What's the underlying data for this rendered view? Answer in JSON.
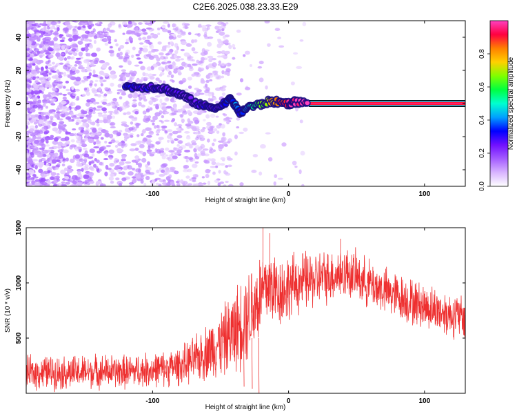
{
  "chart_data": [
    {
      "type": "heatmap",
      "title": "C2E6.2025.038.23.33.E29",
      "xlabel": "Height of straight line (km)",
      "ylabel": "Frequency (Hz)",
      "xlim": [
        -193,
        130
      ],
      "ylim": [
        -50,
        50
      ],
      "xticks": [
        -100,
        0,
        100
      ],
      "yticks": [
        -40,
        -20,
        0,
        20,
        40
      ],
      "colorbar": {
        "label": "Normalized spectral amplitude",
        "range": [
          0,
          1
        ],
        "ticks": [
          0.0,
          0.2,
          0.4,
          0.6,
          0.8
        ],
        "colormap": [
          "#ffffff",
          "#d8b4ff",
          "#a45cff",
          "#7010ff",
          "#0000ff",
          "#00a0ff",
          "#00ffd0",
          "#00ff40",
          "#80ff00",
          "#ffd000",
          "#ff8000",
          "#ff0040",
          "#ff40c0"
        ]
      },
      "ridge": [
        {
          "x": -120,
          "y": 10,
          "amp": 0.25
        },
        {
          "x": -110,
          "y": 10,
          "amp": 0.22
        },
        {
          "x": -100,
          "y": 10,
          "amp": 0.22
        },
        {
          "x": -92,
          "y": 9,
          "amp": 0.2
        },
        {
          "x": -85,
          "y": 7,
          "amp": 0.18
        },
        {
          "x": -78,
          "y": 5,
          "amp": 0.17
        },
        {
          "x": -72,
          "y": 2,
          "amp": 0.15
        },
        {
          "x": -65,
          "y": -1,
          "amp": 0.22
        },
        {
          "x": -58,
          "y": -2,
          "amp": 0.2
        },
        {
          "x": -50,
          "y": -2,
          "amp": 0.18
        },
        {
          "x": -44,
          "y": 3,
          "amp": 0.3
        },
        {
          "x": -40,
          "y": 0,
          "amp": 0.35
        },
        {
          "x": -36,
          "y": -6,
          "amp": 0.3
        },
        {
          "x": -30,
          "y": -2,
          "amp": 0.4
        },
        {
          "x": -22,
          "y": -1,
          "amp": 0.55
        },
        {
          "x": -15,
          "y": 1,
          "amp": 0.65
        },
        {
          "x": -8,
          "y": 1,
          "amp": 0.8
        },
        {
          "x": 0,
          "y": 0,
          "amp": 0.9
        },
        {
          "x": 5,
          "y": 1,
          "amp": 0.95
        },
        {
          "x": 15,
          "y": 0,
          "amp": 0.95
        }
      ],
      "band": {
        "x_start": 15,
        "x_end": 130,
        "y": 0,
        "amp": 0.95
      }
    },
    {
      "type": "line",
      "xlabel": "Height of straight line (km)",
      "ylabel": "SNR (10 * v/v)",
      "xlim": [
        -193,
        130
      ],
      "ylim": [
        0,
        1500
      ],
      "xticks": [
        -100,
        0,
        100
      ],
      "yticks": [
        500,
        1000,
        1500
      ],
      "color": "#ee3030",
      "series": [
        {
          "x": [
            -193,
            -180,
            -160,
            -140,
            -120,
            -100,
            -90,
            -80,
            -75,
            -70,
            -65,
            -60,
            -55,
            -50,
            -45,
            -40,
            -35,
            -30,
            -25,
            -22,
            -20,
            -15,
            -10,
            -5,
            0,
            5,
            10,
            15,
            20,
            25,
            30,
            35,
            40,
            45,
            50,
            55,
            60,
            65,
            70,
            80,
            90,
            100,
            110,
            120,
            130
          ],
          "values": [
            180,
            190,
            185,
            200,
            195,
            215,
            225,
            250,
            270,
            300,
            330,
            380,
            420,
            460,
            500,
            560,
            640,
            720,
            800,
            850,
            900,
            980,
            950,
            930,
            960,
            990,
            1010,
            1020,
            1030,
            1050,
            1060,
            1080,
            1100,
            1080,
            1060,
            1020,
            990,
            960,
            930,
            880,
            830,
            790,
            750,
            710,
            680
          ]
        }
      ],
      "noise_amp": [
        180,
        180,
        180,
        180,
        180,
        180,
        190,
        200,
        220,
        240,
        260,
        300,
        330,
        360,
        400,
        450,
        480,
        500,
        520,
        500,
        480,
        450,
        400,
        380,
        350,
        330,
        320,
        310,
        300,
        290,
        280,
        280,
        270,
        270,
        260,
        260,
        260,
        250,
        250,
        250,
        250,
        240,
        240,
        240,
        240
      ],
      "dropouts": [
        {
          "x": -22,
          "y": 0
        },
        {
          "x": -27,
          "y": 40
        },
        {
          "x": -33,
          "y": 60
        }
      ],
      "spikes": [
        {
          "x": -19,
          "y": 1500
        },
        {
          "x": -14,
          "y": 1450
        },
        {
          "x": 38,
          "y": 1400
        }
      ]
    }
  ]
}
